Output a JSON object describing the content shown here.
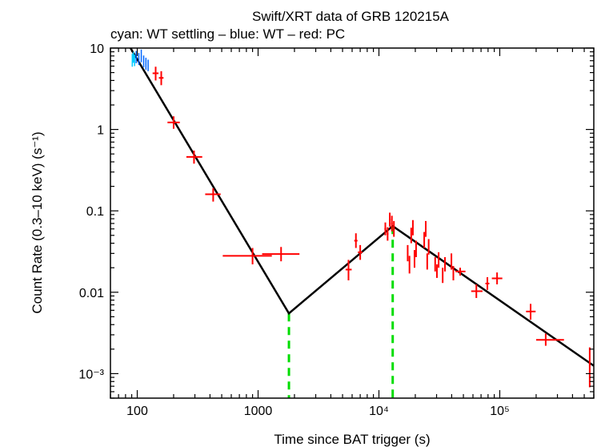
{
  "chart_data": {
    "type": "scatter",
    "title": "Swift/XRT data of GRB 120215A",
    "subtitle": "cyan: WT settling – blue: WT – red: PC",
    "xlabel": "Time since BAT trigger (s)",
    "ylabel": "Count Rate (0.3–10 keV) (s⁻¹)",
    "x_scale": "log",
    "y_scale": "log",
    "xlim": [
      60,
      600000
    ],
    "ylim": [
      0.0005,
      10
    ],
    "x_ticks": [
      {
        "value": 100,
        "label": "100"
      },
      {
        "value": 1000,
        "label": "1000"
      },
      {
        "value": 10000,
        "label": "10⁴"
      },
      {
        "value": 100000,
        "label": "10⁵"
      }
    ],
    "y_ticks": [
      {
        "value": 10,
        "label": "10"
      },
      {
        "value": 1,
        "label": "1"
      },
      {
        "value": 0.1,
        "label": "0.1"
      },
      {
        "value": 0.01,
        "label": "0.01"
      },
      {
        "value": 0.001,
        "label": "10⁻³"
      }
    ],
    "series": [
      {
        "name": "WT settling",
        "color": "#00ccff",
        "points": [
          {
            "x": 91,
            "xlo": 90.5,
            "xhi": 91.5,
            "y": 7.2,
            "ylo": 5.9,
            "yhi": 8.5
          },
          {
            "x": 93,
            "xlo": 92.5,
            "xhi": 93.5,
            "y": 7.8,
            "ylo": 6.6,
            "yhi": 9.0
          },
          {
            "x": 95,
            "xlo": 94.5,
            "xhi": 95.5,
            "y": 7.0,
            "ylo": 6.0,
            "yhi": 8.3
          }
        ]
      },
      {
        "name": "WT",
        "color": "#0066ff",
        "points": [
          {
            "x": 98,
            "xlo": 97,
            "xhi": 99,
            "y": 7.6,
            "ylo": 6.5,
            "yhi": 9.2
          },
          {
            "x": 103,
            "xlo": 102,
            "xhi": 104,
            "y": 7.3,
            "ylo": 6.2,
            "yhi": 8.7
          },
          {
            "x": 108,
            "xlo": 107,
            "xhi": 109,
            "y": 7.9,
            "ylo": 6.7,
            "yhi": 9.6
          },
          {
            "x": 113,
            "xlo": 112,
            "xhi": 114,
            "y": 6.9,
            "ylo": 5.8,
            "yhi": 8.1
          },
          {
            "x": 118,
            "xlo": 117,
            "xhi": 119,
            "y": 6.4,
            "ylo": 5.4,
            "yhi": 7.6
          },
          {
            "x": 123,
            "xlo": 122,
            "xhi": 124,
            "y": 6.1,
            "ylo": 5.2,
            "yhi": 7.2
          }
        ]
      },
      {
        "name": "PC",
        "color": "#ff0000",
        "points": [
          {
            "x": 142,
            "xlo": 134,
            "xhi": 150,
            "y": 4.9,
            "ylo": 4.0,
            "yhi": 5.9
          },
          {
            "x": 158,
            "xlo": 151,
            "xhi": 165,
            "y": 4.3,
            "ylo": 3.5,
            "yhi": 5.2
          },
          {
            "x": 200,
            "xlo": 178,
            "xhi": 225,
            "y": 1.22,
            "ylo": 1.02,
            "yhi": 1.45
          },
          {
            "x": 295,
            "xlo": 255,
            "xhi": 345,
            "y": 0.46,
            "ylo": 0.38,
            "yhi": 0.55
          },
          {
            "x": 425,
            "xlo": 365,
            "xhi": 490,
            "y": 0.16,
            "ylo": 0.13,
            "yhi": 0.19
          },
          {
            "x": 900,
            "xlo": 510,
            "xhi": 1300,
            "y": 0.028,
            "ylo": 0.022,
            "yhi": 0.035
          },
          {
            "x": 1550,
            "xlo": 1080,
            "xhi": 2200,
            "y": 0.0295,
            "ylo": 0.024,
            "yhi": 0.036
          },
          {
            "x": 5600,
            "xlo": 5300,
            "xhi": 5950,
            "y": 0.019,
            "ylo": 0.014,
            "yhi": 0.025
          },
          {
            "x": 6450,
            "xlo": 6250,
            "xhi": 6650,
            "y": 0.043,
            "ylo": 0.035,
            "yhi": 0.053
          },
          {
            "x": 7000,
            "xlo": 6700,
            "xhi": 7300,
            "y": 0.031,
            "ylo": 0.025,
            "yhi": 0.038
          },
          {
            "x": 11300,
            "xlo": 11100,
            "xhi": 11500,
            "y": 0.06,
            "ylo": 0.05,
            "yhi": 0.072
          },
          {
            "x": 11800,
            "xlo": 11600,
            "xhi": 12000,
            "y": 0.052,
            "ylo": 0.043,
            "yhi": 0.063
          },
          {
            "x": 12300,
            "xlo": 12100,
            "xhi": 12500,
            "y": 0.078,
            "ylo": 0.064,
            "yhi": 0.095
          },
          {
            "x": 12800,
            "xlo": 12600,
            "xhi": 13000,
            "y": 0.07,
            "ylo": 0.056,
            "yhi": 0.087
          },
          {
            "x": 13300,
            "xlo": 13100,
            "xhi": 13500,
            "y": 0.06,
            "ylo": 0.048,
            "yhi": 0.075
          },
          {
            "x": 17300,
            "xlo": 17100,
            "xhi": 17500,
            "y": 0.03,
            "ylo": 0.024,
            "yhi": 0.038
          },
          {
            "x": 17900,
            "xlo": 17700,
            "xhi": 18100,
            "y": 0.022,
            "ylo": 0.017,
            "yhi": 0.028
          },
          {
            "x": 18500,
            "xlo": 18300,
            "xhi": 18700,
            "y": 0.05,
            "ylo": 0.04,
            "yhi": 0.062
          },
          {
            "x": 19100,
            "xlo": 18900,
            "xhi": 19300,
            "y": 0.062,
            "ylo": 0.05,
            "yhi": 0.077
          },
          {
            "x": 19700,
            "xlo": 19500,
            "xhi": 19900,
            "y": 0.026,
            "ylo": 0.02,
            "yhi": 0.033
          },
          {
            "x": 20300,
            "xlo": 20100,
            "xhi": 20500,
            "y": 0.034,
            "ylo": 0.027,
            "yhi": 0.043
          },
          {
            "x": 23700,
            "xlo": 23500,
            "xhi": 23900,
            "y": 0.044,
            "ylo": 0.035,
            "yhi": 0.055
          },
          {
            "x": 24400,
            "xlo": 24200,
            "xhi": 24600,
            "y": 0.06,
            "ylo": 0.048,
            "yhi": 0.075
          },
          {
            "x": 25100,
            "xlo": 24900,
            "xhi": 25300,
            "y": 0.024,
            "ylo": 0.019,
            "yhi": 0.03
          },
          {
            "x": 25800,
            "xlo": 25600,
            "xhi": 26000,
            "y": 0.036,
            "ylo": 0.029,
            "yhi": 0.045
          },
          {
            "x": 29200,
            "xlo": 29000,
            "xhi": 29400,
            "y": 0.022,
            "ylo": 0.018,
            "yhi": 0.027
          },
          {
            "x": 30200,
            "xlo": 30000,
            "xhi": 30400,
            "y": 0.018,
            "ylo": 0.015,
            "yhi": 0.022
          },
          {
            "x": 31200,
            "xlo": 31000,
            "xhi": 31400,
            "y": 0.025,
            "ylo": 0.02,
            "yhi": 0.031
          },
          {
            "x": 33700,
            "xlo": 33500,
            "xhi": 33900,
            "y": 0.016,
            "ylo": 0.013,
            "yhi": 0.02
          },
          {
            "x": 35200,
            "xlo": 35000,
            "xhi": 35400,
            "y": 0.022,
            "ylo": 0.018,
            "yhi": 0.027
          },
          {
            "x": 39800,
            "xlo": 39400,
            "xhi": 40200,
            "y": 0.024,
            "ylo": 0.019,
            "yhi": 0.03
          },
          {
            "x": 41300,
            "xlo": 40900,
            "xhi": 41700,
            "y": 0.017,
            "ylo": 0.014,
            "yhi": 0.021
          },
          {
            "x": 47000,
            "xlo": 43000,
            "xhi": 52000,
            "y": 0.018,
            "ylo": 0.016,
            "yhi": 0.02
          },
          {
            "x": 64000,
            "xlo": 58000,
            "xhi": 72000,
            "y": 0.0103,
            "ylo": 0.0085,
            "yhi": 0.0125
          },
          {
            "x": 79000,
            "xlo": 76000,
            "xhi": 82000,
            "y": 0.0128,
            "ylo": 0.0107,
            "yhi": 0.0153
          },
          {
            "x": 95000,
            "xlo": 86000,
            "xhi": 105000,
            "y": 0.0148,
            "ylo": 0.0125,
            "yhi": 0.0175
          },
          {
            "x": 180000,
            "xlo": 165000,
            "xhi": 198000,
            "y": 0.0058,
            "ylo": 0.0046,
            "yhi": 0.0072
          },
          {
            "x": 240000,
            "xlo": 200000,
            "xhi": 340000,
            "y": 0.0026,
            "ylo": 0.0022,
            "yhi": 0.0031
          },
          {
            "x": 555000,
            "xlo": 548000,
            "xhi": 562000,
            "y": 0.0013,
            "ylo": 0.00068,
            "yhi": 0.0021
          }
        ]
      }
    ],
    "model": {
      "color": "#000000",
      "points": [
        {
          "x": 88,
          "y": 10
        },
        {
          "x": 1800,
          "y": 0.0055
        },
        {
          "x": 13000,
          "y": 0.065
        },
        {
          "x": 600000,
          "y": 0.00125
        }
      ]
    },
    "breaks": {
      "color": "#00dd00",
      "x": [
        1800,
        13000
      ]
    }
  }
}
